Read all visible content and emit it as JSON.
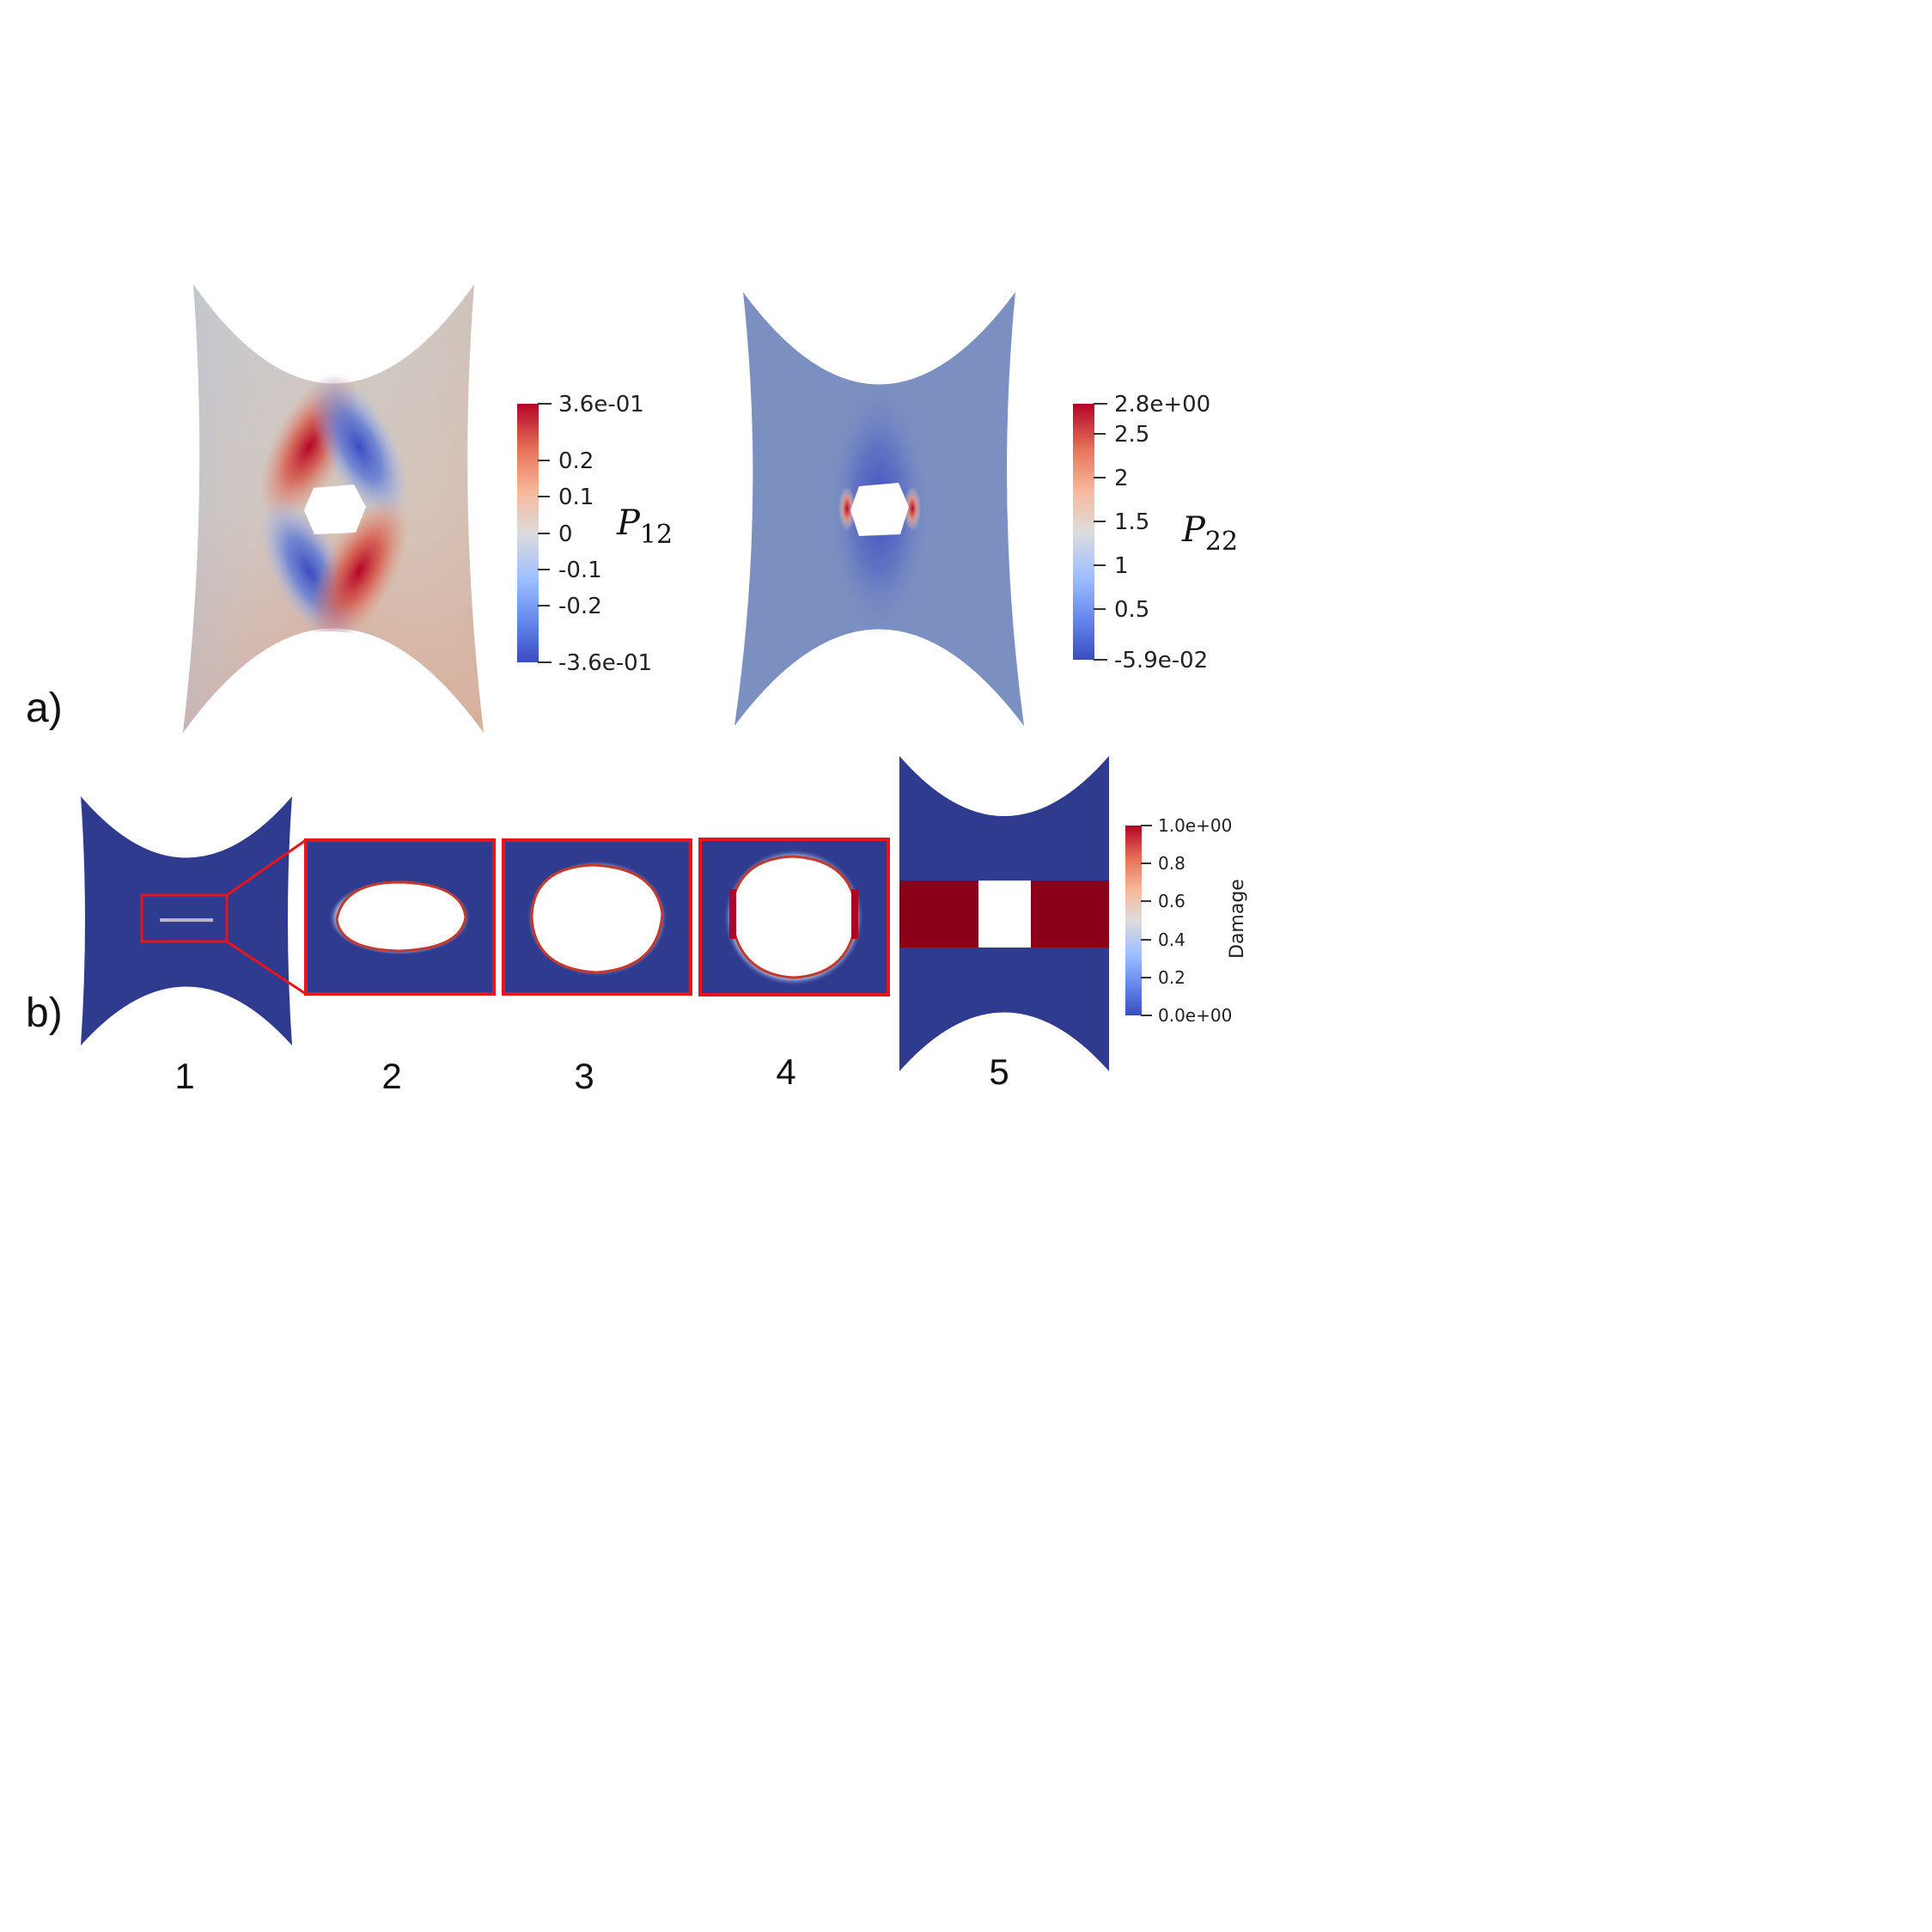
{
  "panel_a": {
    "label": "a)",
    "left_plot": {
      "symbol": "P",
      "subscript": "12",
      "colorbar": {
        "max_label": "3.6e-01",
        "min_label": "-3.6e-01",
        "ticks": [
          "0.2",
          "0.1",
          "0",
          "-0.1",
          "-0.2"
        ]
      }
    },
    "right_plot": {
      "symbol": "P",
      "subscript": "22",
      "colorbar": {
        "max_label": "2.8e+00",
        "min_label": "-5.9e-02",
        "ticks": [
          "2.5",
          "2",
          "1.5",
          "1",
          "0.5"
        ]
      }
    }
  },
  "panel_b": {
    "label": "b)",
    "stage_labels": [
      "1",
      "2",
      "3",
      "4",
      "5"
    ],
    "colorbar": {
      "title": "Damage",
      "max_label": "1.0e+00",
      "min_label": "0.0e+00",
      "ticks": [
        "0.8",
        "0.6",
        "0.4",
        "0.2"
      ]
    }
  },
  "colors": {
    "cool_blue": "#3b4cc0",
    "neutral": "#dddcdc",
    "warm_red": "#b40426",
    "damage_navy": "#2f3b8e",
    "damage_red": "#8a0019",
    "highlight_red": "#e8141b"
  }
}
